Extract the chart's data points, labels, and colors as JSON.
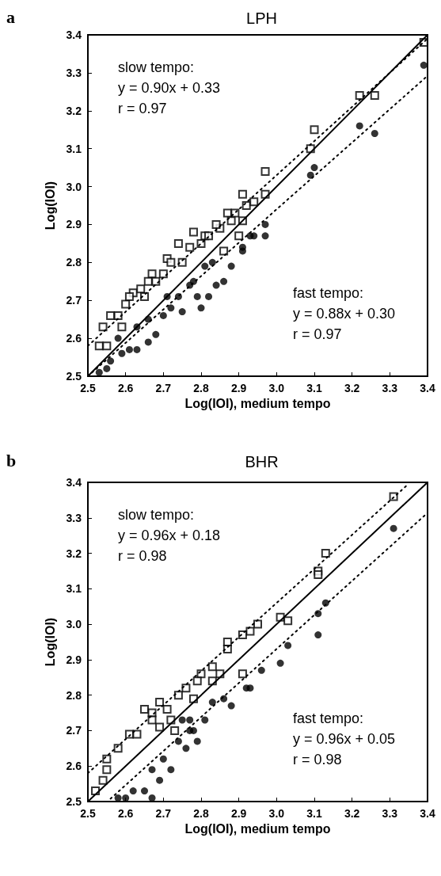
{
  "chart_data": [
    {
      "type": "scatter",
      "title": "LPH",
      "xlabel": "Log(IOI), medium tempo",
      "ylabel": "Log(IOI)",
      "annotations": [
        "a",
        "slow tempo:\ny = 0.90x + 0.33\nr = 0.97",
        "fast tempo:\ny = 0.88x + 0.30\nr = 0.97"
      ],
      "xlim": [
        2.5,
        3.4
      ],
      "ylim": [
        2.5,
        3.4
      ],
      "xticks": [
        2.5,
        2.6,
        2.7,
        2.8,
        2.9,
        {
          "value": 3,
          "label": "3.0"
        },
        3.1,
        3.2,
        3.3,
        3.4
      ],
      "yticks": [
        2.5,
        2.6,
        2.7,
        2.8,
        2.9,
        {
          "value": 3,
          "label": "3.0"
        },
        3.1,
        3.2,
        3.3,
        3.4
      ],
      "grid": false,
      "series": [
        {
          "type": "scatter",
          "marker": "square",
          "color": "#000000",
          "x": [
            3.39,
            3.22,
            3.26,
            3.1,
            3.09,
            2.97,
            2.97,
            2.91,
            2.92,
            2.94,
            2.87,
            2.89,
            2.91,
            2.85,
            2.88,
            2.78,
            2.81,
            2.74,
            2.86,
            2.9,
            2.77,
            2.71,
            2.75,
            2.67,
            2.66,
            2.7,
            2.62,
            2.6,
            2.64,
            2.56,
            2.58,
            2.54,
            2.59,
            2.53,
            2.55,
            2.72,
            2.8,
            2.82,
            2.84,
            2.68,
            2.61,
            2.65
          ],
          "values": [
            3.38,
            3.24,
            3.24,
            3.15,
            3.1,
            3.04,
            2.98,
            2.98,
            2.95,
            2.96,
            2.93,
            2.93,
            2.91,
            2.89,
            2.91,
            2.88,
            2.87,
            2.85,
            2.83,
            2.87,
            2.84,
            2.81,
            2.8,
            2.77,
            2.75,
            2.77,
            2.72,
            2.69,
            2.73,
            2.66,
            2.66,
            2.63,
            2.63,
            2.58,
            2.58,
            2.8,
            2.85,
            2.87,
            2.9,
            2.75,
            2.71,
            2.71
          ]
        },
        {
          "type": "scatter",
          "marker": "circle",
          "color": "#000000",
          "x": [
            3.39,
            3.22,
            3.26,
            3.1,
            3.09,
            2.97,
            2.97,
            2.93,
            2.91,
            2.86,
            2.83,
            2.88,
            2.84,
            2.81,
            2.82,
            2.79,
            2.77,
            2.75,
            2.72,
            2.7,
            2.68,
            2.66,
            2.63,
            2.61,
            2.58,
            2.59,
            2.56,
            2.55,
            2.53,
            2.74,
            2.78,
            2.8,
            2.66,
            2.71,
            2.63,
            2.91,
            2.94
          ],
          "values": [
            3.32,
            3.16,
            3.14,
            3.05,
            3.03,
            2.9,
            2.87,
            2.87,
            2.84,
            2.75,
            2.8,
            2.79,
            2.74,
            2.79,
            2.71,
            2.71,
            2.74,
            2.67,
            2.68,
            2.66,
            2.61,
            2.59,
            2.57,
            2.57,
            2.6,
            2.56,
            2.54,
            2.52,
            2.51,
            2.71,
            2.75,
            2.68,
            2.65,
            2.71,
            2.63,
            2.83,
            2.87
          ]
        },
        {
          "type": "line",
          "marker": "none",
          "line_style": "solid",
          "color": "#000000",
          "x": [
            2.5,
            3.4
          ],
          "values": [
            2.5,
            3.4
          ]
        },
        {
          "type": "line",
          "marker": "none",
          "line_style": "dotted",
          "color": "#000000",
          "x": [
            2.5,
            3.4
          ],
          "values": [
            2.58,
            3.39
          ]
        },
        {
          "type": "line",
          "marker": "none",
          "line_style": "dotted",
          "color": "#000000",
          "x": [
            2.5,
            3.4
          ],
          "values": [
            2.5,
            3.292
          ]
        }
      ]
    },
    {
      "type": "scatter",
      "title": "BHR",
      "xlabel": "Log(IOI), medium tempo",
      "ylabel": "Log(IOI)",
      "annotations": [
        "b",
        "slow tempo:\ny = 0.96x + 0.18\nr = 0.98",
        "fast tempo:\ny = 0.96x + 0.05\nr = 0.98"
      ],
      "xlim": [
        2.5,
        3.4
      ],
      "ylim": [
        2.5,
        3.4
      ],
      "xticks": [
        2.5,
        2.6,
        2.7,
        2.8,
        2.9,
        {
          "value": 3,
          "label": "3.0"
        },
        3.1,
        3.2,
        3.3,
        3.4
      ],
      "yticks": [
        2.5,
        2.6,
        2.7,
        2.8,
        2.9,
        {
          "value": 3,
          "label": "3.0"
        },
        3.1,
        3.2,
        3.3,
        3.4
      ],
      "grid": false,
      "series": [
        {
          "type": "scatter",
          "marker": "square",
          "color": "#000000",
          "x": [
            3.31,
            3.13,
            3.11,
            3.11,
            3.01,
            3.03,
            2.95,
            2.93,
            2.91,
            2.87,
            2.87,
            2.91,
            2.85,
            2.83,
            2.83,
            2.8,
            2.79,
            2.76,
            2.74,
            2.69,
            2.65,
            2.67,
            2.67,
            2.72,
            2.61,
            2.63,
            2.58,
            2.55,
            2.55,
            2.54,
            2.52,
            2.71,
            2.73,
            2.78,
            2.69
          ],
          "values": [
            3.36,
            3.2,
            3.15,
            3.14,
            3.02,
            3.01,
            3.0,
            2.98,
            2.97,
            2.95,
            2.93,
            2.86,
            2.86,
            2.88,
            2.84,
            2.86,
            2.84,
            2.82,
            2.8,
            2.78,
            2.76,
            2.75,
            2.73,
            2.73,
            2.69,
            2.69,
            2.65,
            2.62,
            2.59,
            2.56,
            2.53,
            2.76,
            2.7,
            2.79,
            2.71
          ]
        },
        {
          "type": "scatter",
          "marker": "circle",
          "color": "#000000",
          "x": [
            3.31,
            3.13,
            3.11,
            3.11,
            3.03,
            3.01,
            2.96,
            2.92,
            2.93,
            2.86,
            2.88,
            2.83,
            2.81,
            2.78,
            2.77,
            2.79,
            2.76,
            2.74,
            2.7,
            2.72,
            2.67,
            2.69,
            2.65,
            2.62,
            2.6,
            2.58,
            2.77,
            2.75,
            2.67
          ],
          "values": [
            3.27,
            3.06,
            3.03,
            2.97,
            2.94,
            2.89,
            2.87,
            2.82,
            2.82,
            2.79,
            2.77,
            2.78,
            2.73,
            2.7,
            2.73,
            2.67,
            2.65,
            2.67,
            2.62,
            2.59,
            2.59,
            2.56,
            2.53,
            2.53,
            2.51,
            2.51,
            2.7,
            2.73,
            2.51
          ]
        },
        {
          "type": "line",
          "marker": "none",
          "line_style": "solid",
          "color": "#000000",
          "x": [
            2.5,
            3.4
          ],
          "values": [
            2.5,
            3.4
          ]
        },
        {
          "type": "line",
          "marker": "none",
          "line_style": "dotted",
          "color": "#000000",
          "x": [
            2.5,
            3.35
          ],
          "values": [
            2.58,
            3.396
          ]
        },
        {
          "type": "line",
          "marker": "none",
          "line_style": "dotted",
          "color": "#000000",
          "x": [
            2.56,
            3.4
          ],
          "values": [
            2.508,
            3.314
          ]
        }
      ]
    }
  ]
}
